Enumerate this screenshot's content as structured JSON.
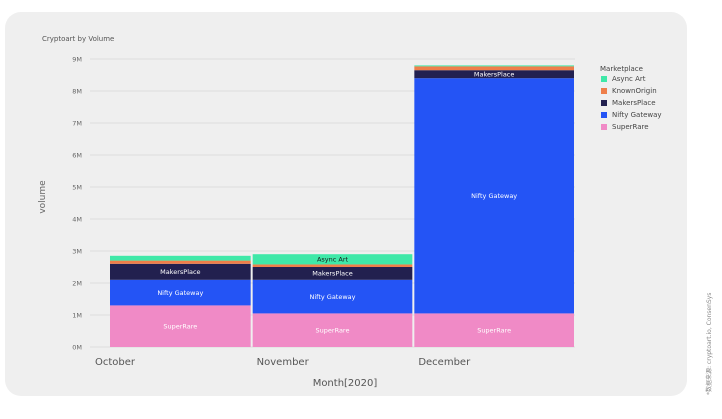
{
  "chart_data": {
    "type": "bar",
    "stacked": true,
    "title": "Cryptoart by Volume",
    "xlabel": "Month[2020]",
    "ylabel": "volume",
    "categories": [
      "October",
      "November",
      "December"
    ],
    "ylim": [
      0,
      9000000
    ],
    "yticks": [
      0,
      1000000,
      2000000,
      3000000,
      4000000,
      5000000,
      6000000,
      7000000,
      8000000,
      9000000
    ],
    "ytick_labels": [
      "0M",
      "1M",
      "2M",
      "3M",
      "4M",
      "5M",
      "6M",
      "7M",
      "8M",
      "9M"
    ],
    "grid": true,
    "legend_title": "Marketplace",
    "legend_position": "right",
    "legend": [
      {
        "name": "Async Art",
        "color": "#3fe8a8"
      },
      {
        "name": "KnownOrigin",
        "color": "#ee7e4a"
      },
      {
        "name": "MakersPlace",
        "color": "#22204f"
      },
      {
        "name": "Nifty Gateway",
        "color": "#2454f5"
      },
      {
        "name": "SuperRare",
        "color": "#f08ac6"
      }
    ],
    "stack_order": [
      "SuperRare",
      "Nifty Gateway",
      "MakersPlace",
      "KnownOrigin",
      "Async Art"
    ],
    "series": [
      {
        "name": "SuperRare",
        "color": "#f08ac6",
        "values": [
          1300000,
          1050000,
          1050000
        ],
        "labels": [
          "SuperRare",
          "SuperRare",
          "SuperRare"
        ]
      },
      {
        "name": "Nifty Gateway",
        "color": "#2454f5",
        "values": [
          800000,
          1050000,
          7350000
        ],
        "labels": [
          "Nifty Gateway",
          "Nifty Gateway",
          "Nifty Gateway"
        ]
      },
      {
        "name": "MakersPlace",
        "color": "#22204f",
        "values": [
          500000,
          400000,
          250000
        ],
        "labels": [
          "MakersPlace",
          "MakersPlace",
          "MakersPlace"
        ]
      },
      {
        "name": "KnownOrigin",
        "color": "#ee7e4a",
        "values": [
          100000,
          80000,
          120000
        ],
        "labels": [
          "",
          "",
          ""
        ]
      },
      {
        "name": "Async Art",
        "color": "#3fe8a8",
        "values": [
          150000,
          320000,
          30000
        ],
        "labels": [
          "",
          "Async Art",
          ""
        ]
      }
    ]
  },
  "source_note": "*数据来源: cryptoart.io, ConsenSys"
}
